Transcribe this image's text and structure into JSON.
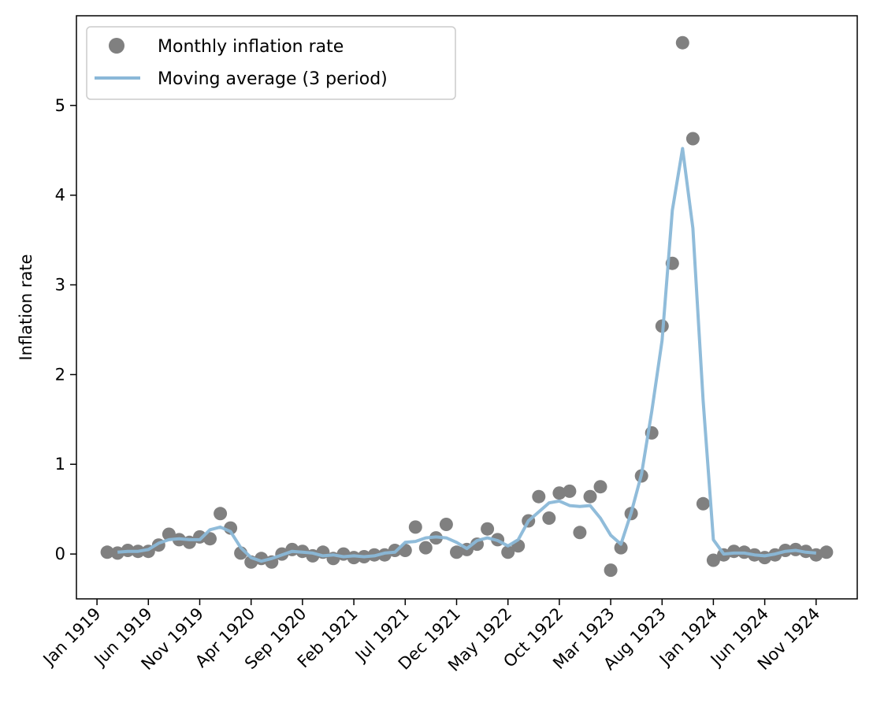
{
  "chart_data": {
    "type": "scatter",
    "title": "",
    "xlabel": "",
    "ylabel": "Inflation rate",
    "x_ticks": [
      "Jan 1919",
      "Jun 1919",
      "Nov 1919",
      "Apr 1920",
      "Sep 1920",
      "Feb 1921",
      "Jul 1921",
      "Dec 1921",
      "May 1922",
      "Oct 1922",
      "Mar 1923",
      "Aug 1923",
      "Jan 1924",
      "Jun 1924",
      "Nov 1924"
    ],
    "x_range": [
      "1918-11",
      "1925-03"
    ],
    "y_ticks": [
      0,
      1,
      2,
      3,
      4,
      5
    ],
    "ylim": [
      -0.5,
      6.0
    ],
    "grid": false,
    "legend_position": "top-left",
    "series": [
      {
        "name": "Monthly inflation rate",
        "kind": "scatter",
        "color": "#808080",
        "x": [
          "1919-02",
          "1919-03",
          "1919-04",
          "1919-05",
          "1919-06",
          "1919-07",
          "1919-08",
          "1919-09",
          "1919-10",
          "1919-11",
          "1919-12",
          "1920-01",
          "1920-02",
          "1920-03",
          "1920-04",
          "1920-05",
          "1920-06",
          "1920-07",
          "1920-08",
          "1920-09",
          "1920-10",
          "1920-11",
          "1920-12",
          "1921-01",
          "1921-02",
          "1921-03",
          "1921-04",
          "1921-05",
          "1921-06",
          "1921-07",
          "1921-08",
          "1921-09",
          "1921-10",
          "1921-11",
          "1921-12",
          "1922-01",
          "1922-02",
          "1922-03",
          "1922-04",
          "1922-05",
          "1922-06",
          "1922-07",
          "1922-08",
          "1922-09",
          "1922-10",
          "1922-11",
          "1922-12",
          "1923-01",
          "1923-02",
          "1923-03",
          "1923-04",
          "1923-05",
          "1923-06",
          "1923-07",
          "1923-08",
          "1923-09",
          "1923-10",
          "1923-11",
          "1923-12",
          "1924-01",
          "1924-02",
          "1924-03",
          "1924-04",
          "1924-05",
          "1924-06",
          "1924-07",
          "1924-08",
          "1924-09",
          "1924-10",
          "1924-11",
          "1924-12"
        ],
        "values": [
          0.02,
          0.01,
          0.04,
          0.03,
          0.03,
          0.1,
          0.22,
          0.16,
          0.13,
          0.19,
          0.17,
          0.45,
          0.29,
          0.01,
          -0.09,
          -0.05,
          -0.09,
          0.0,
          0.05,
          0.03,
          -0.02,
          0.02,
          -0.05,
          -0.0,
          -0.04,
          -0.03,
          -0.01,
          -0.01,
          0.04,
          0.04,
          0.3,
          0.07,
          0.18,
          0.33,
          0.02,
          0.05,
          0.11,
          0.28,
          0.16,
          0.02,
          0.09,
          0.37,
          0.64,
          0.4,
          0.68,
          0.7,
          0.24,
          0.64,
          0.75,
          -0.18,
          0.07,
          0.45,
          0.87,
          1.35,
          2.54,
          3.24,
          5.7,
          4.63,
          0.56,
          -0.07,
          -0.01,
          0.03,
          0.02,
          -0.01,
          -0.04,
          -0.01,
          0.04,
          0.05,
          0.03,
          -0.01,
          0.02
        ]
      },
      {
        "name": "Moving average (3 period)",
        "kind": "line",
        "color": "#8ab8d8",
        "x": [
          "1919-03",
          "1919-04",
          "1919-05",
          "1919-06",
          "1919-07",
          "1919-08",
          "1919-09",
          "1919-10",
          "1919-11",
          "1919-12",
          "1920-01",
          "1920-02",
          "1920-03",
          "1920-04",
          "1920-05",
          "1920-06",
          "1920-07",
          "1920-08",
          "1920-09",
          "1920-10",
          "1920-11",
          "1920-12",
          "1921-01",
          "1921-02",
          "1921-03",
          "1921-04",
          "1921-05",
          "1921-06",
          "1921-07",
          "1921-08",
          "1921-09",
          "1921-10",
          "1921-11",
          "1921-12",
          "1922-01",
          "1922-02",
          "1922-03",
          "1922-04",
          "1922-05",
          "1922-06",
          "1922-07",
          "1922-08",
          "1922-09",
          "1922-10",
          "1922-11",
          "1922-12",
          "1923-01",
          "1923-02",
          "1923-03",
          "1923-04",
          "1923-05",
          "1923-06",
          "1923-07",
          "1923-08",
          "1923-09",
          "1923-10",
          "1923-11",
          "1923-12",
          "1924-01",
          "1924-02",
          "1924-03",
          "1924-04",
          "1924-05",
          "1924-06",
          "1924-07",
          "1924-08",
          "1924-09",
          "1924-10",
          "1924-11"
        ],
        "values": [
          0.02,
          0.03,
          0.03,
          0.05,
          0.12,
          0.16,
          0.17,
          0.16,
          0.16,
          0.27,
          0.3,
          0.25,
          0.07,
          -0.04,
          -0.08,
          -0.05,
          -0.01,
          0.03,
          0.02,
          0.01,
          -0.02,
          -0.01,
          -0.03,
          -0.02,
          -0.03,
          -0.02,
          0.01,
          0.02,
          0.13,
          0.14,
          0.18,
          0.19,
          0.18,
          0.13,
          0.06,
          0.15,
          0.18,
          0.15,
          0.09,
          0.16,
          0.37,
          0.47,
          0.57,
          0.59,
          0.54,
          0.53,
          0.54,
          0.4,
          0.21,
          0.11,
          0.46,
          0.89,
          1.59,
          2.38,
          3.83,
          4.52,
          3.63,
          1.71,
          0.16,
          0.0,
          0.01,
          0.01,
          -0.01,
          -0.02,
          0.0,
          0.03,
          0.04,
          0.02,
          0.01
        ]
      }
    ]
  }
}
